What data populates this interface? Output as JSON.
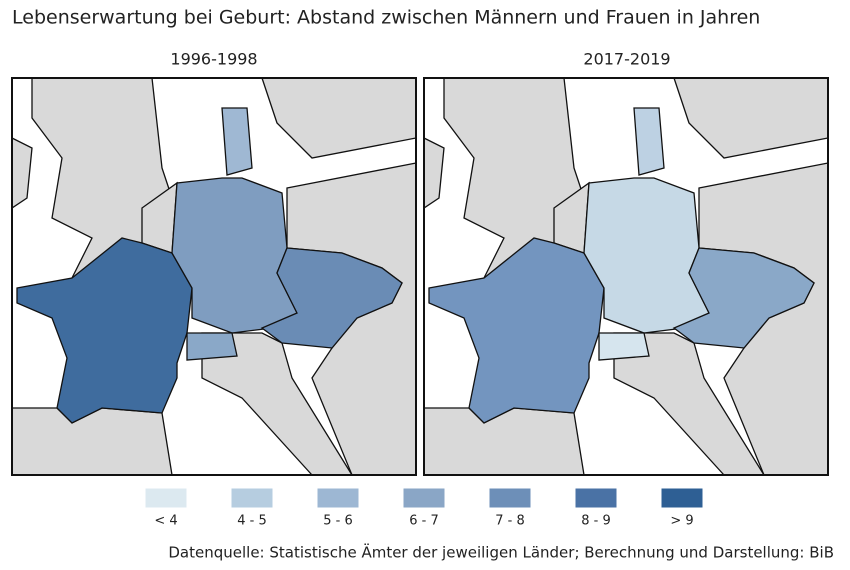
{
  "title": "Lebenserwartung bei Geburt: Abstand zwischen Männern und Frauen in Jahren",
  "panels": [
    {
      "title": "1996-1998"
    },
    {
      "title": "2017-2019"
    }
  ],
  "legend": {
    "items": [
      {
        "label": "< 4",
        "color": "#dce9f0"
      },
      {
        "label": "4 - 5",
        "color": "#b6cde0"
      },
      {
        "label": "5 - 6",
        "color": "#9db7d3"
      },
      {
        "label": "6 - 7",
        "color": "#8aa6c6"
      },
      {
        "label": "7 - 8",
        "color": "#6d8fb8"
      },
      {
        "label": "8 - 9",
        "color": "#4a72a5"
      },
      {
        "label": "> 9",
        "color": "#2e5f94"
      }
    ]
  },
  "source": "Datenquelle: Statistische Ämter der jeweiligen Länder; Berechnung und Darstellung: BiB"
}
